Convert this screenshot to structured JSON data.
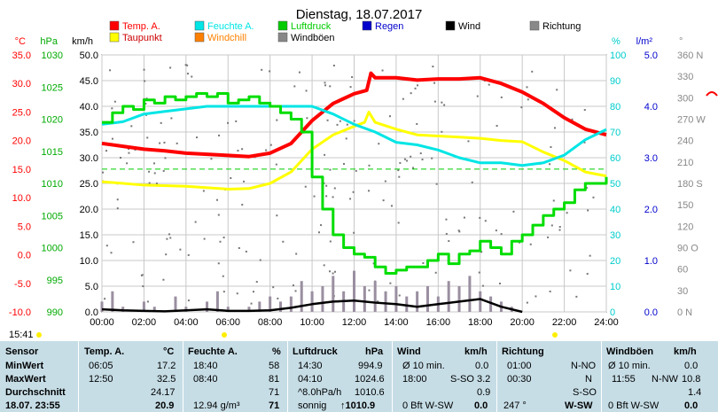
{
  "chart_data": {
    "type": "line",
    "title": "Dienstag, 18.07.2017",
    "x_ticks": [
      "00:00",
      "02:00",
      "04:00",
      "06:00",
      "08:00",
      "10:00",
      "12:00",
      "14:00",
      "16:00",
      "18:00",
      "20:00",
      "22:00",
      "24:00"
    ],
    "grid": true,
    "axes": [
      {
        "unit": "°C",
        "color": "#ff0000",
        "ticks": [
          "35.0",
          "30.0",
          "25.0",
          "20.0",
          "15.0",
          "10.0",
          "5.0",
          "0.0",
          "-5.0",
          "-10.0"
        ],
        "range": [
          -10,
          35
        ]
      },
      {
        "unit": "hPa",
        "color": "#00aa00",
        "ticks": [
          "1030",
          "1025",
          "1020",
          "1015",
          "1010",
          "1005",
          "1000",
          "995",
          "990"
        ],
        "range": [
          990,
          1030
        ]
      },
      {
        "unit": "km/h",
        "color": "#000000",
        "ticks": [
          "50.0",
          "45.0",
          "40.0",
          "35.0",
          "30.0",
          "25.0",
          "20.0",
          "15.0",
          "10.0",
          "5.0",
          "0.0"
        ],
        "range": [
          0,
          50
        ]
      },
      {
        "unit": "%",
        "color": "#00cccc",
        "ticks": [
          "100",
          "90",
          "80",
          "70",
          "60",
          "50",
          "40",
          "30",
          "20",
          "10",
          "0"
        ],
        "range": [
          0,
          100
        ]
      },
      {
        "unit": "l/m²",
        "color": "#0000cc",
        "ticks": [
          "5.0",
          "4.0",
          "3.0",
          "2.0",
          "1.0",
          "0.0"
        ],
        "range": [
          0,
          5
        ]
      },
      {
        "unit": "°",
        "color": "#888888",
        "ticks": [
          "360 N",
          "330",
          "300",
          "270 W",
          "240",
          "210",
          "180 S",
          "150",
          "120",
          "90 O",
          "60",
          "30",
          "0 N"
        ],
        "range": [
          0,
          360
        ]
      }
    ],
    "legend": [
      {
        "label": "Temp. A.",
        "color": "#ff0000"
      },
      {
        "label": "Feuchte A.",
        "color": "#00e5e5"
      },
      {
        "label": "Luftdruck",
        "color": "#00cc00"
      },
      {
        "label": "Regen",
        "color": "#0000cc"
      },
      {
        "label": "Wind",
        "color": "#000000"
      },
      {
        "label": "Richtung",
        "color": "#888888"
      },
      {
        "label": "Taupunkt",
        "color": "#ffff00"
      },
      {
        "label": "Windchill",
        "color": "#ff8000"
      },
      {
        "label": "Windböen",
        "color": "#888888"
      }
    ],
    "series": [
      {
        "name": "Temp. A.",
        "axis": "°C",
        "x": [
          0,
          1,
          2,
          3,
          4,
          5,
          6,
          7,
          8,
          9,
          10,
          11,
          12,
          12.6,
          12.8,
          13,
          14,
          15,
          16,
          17,
          18,
          19,
          20,
          21,
          22,
          23,
          24
        ],
        "values": [
          19.5,
          19.0,
          18.5,
          18.2,
          17.8,
          17.6,
          17.4,
          17.2,
          17.8,
          19.5,
          23.5,
          26.5,
          28.2,
          28.8,
          31.8,
          31.0,
          31.0,
          30.6,
          30.8,
          30.8,
          31.0,
          30.0,
          28.5,
          26.5,
          24.0,
          22.0,
          21.0
        ]
      },
      {
        "name": "Taupunkt",
        "axis": "°C",
        "x": [
          0,
          2,
          4,
          6,
          7,
          8,
          9,
          10,
          11,
          12,
          12.5,
          12.7,
          13,
          14,
          15,
          16,
          17,
          18,
          19,
          20,
          21,
          22,
          23,
          24
        ],
        "values": [
          12.8,
          12.2,
          12.0,
          11.5,
          11.6,
          12.5,
          14.5,
          18.5,
          21.0,
          22.5,
          23.2,
          25.0,
          23.2,
          22.0,
          21.0,
          20.8,
          20.6,
          20.4,
          20.0,
          19.8,
          18.0,
          16.5,
          14.5,
          13.8
        ]
      },
      {
        "name": "Feuchte A.",
        "axis": "%",
        "x": [
          0,
          1,
          2,
          3,
          4,
          5,
          6,
          7,
          8,
          9,
          10,
          11,
          12,
          13,
          14,
          15,
          16,
          17,
          18,
          19,
          20,
          21,
          22,
          23,
          24
        ],
        "values": [
          73,
          74,
          77,
          78,
          79,
          80,
          80,
          80,
          80,
          80,
          80,
          77,
          73,
          70,
          66,
          65,
          63,
          60,
          58,
          58,
          57,
          58,
          61,
          67,
          71
        ]
      },
      {
        "name": "Luftdruck",
        "axis": "hPa",
        "x": [
          0,
          0.5,
          1,
          1.5,
          2,
          2.5,
          3,
          3.5,
          4,
          4.5,
          5,
          5.5,
          6,
          6.5,
          7,
          7.5,
          8,
          8.5,
          9,
          9.5,
          10,
          10.5,
          11,
          11.5,
          12,
          12.5,
          13,
          13.5,
          14,
          14.5,
          15,
          15.5,
          16,
          16.5,
          17,
          17.5,
          18,
          18.5,
          19,
          19.5,
          20,
          20.5,
          21,
          21.5,
          22,
          22.5,
          23,
          23.5,
          24
        ],
        "values": [
          1019.5,
          1021.0,
          1022.0,
          1021.5,
          1023.0,
          1022.5,
          1023.5,
          1023.0,
          1023.5,
          1024.0,
          1023.5,
          1024.0,
          1022.5,
          1023.0,
          1023.5,
          1022.5,
          1022.0,
          1021.0,
          1020.0,
          1018.0,
          1011.0,
          1006.0,
          1002.0,
          1000.0,
          999.0,
          998.5,
          997.0,
          996.0,
          996.5,
          997.0,
          997.0,
          998.0,
          999.0,
          997.5,
          999.0,
          999.5,
          1001.0,
          1000.0,
          999.0,
          1001.0,
          1002.0,
          1003.5,
          1005.0,
          1006.0,
          1007.0,
          1009.0,
          1010.0,
          1010.0,
          1011.0
        ]
      },
      {
        "name": "Wind",
        "axis": "km/h",
        "x": [
          0,
          1,
          2,
          3,
          4,
          5,
          6,
          7,
          8,
          9,
          10,
          11,
          12,
          13,
          14,
          15,
          16,
          17,
          18,
          19,
          20
        ],
        "values": [
          0.5,
          0.3,
          0.2,
          0.1,
          0.3,
          0.5,
          0.2,
          0.2,
          0.3,
          0.8,
          1.5,
          2.0,
          2.2,
          1.8,
          1.5,
          1.0,
          1.5,
          2.0,
          2.5,
          1.0,
          0.0
        ]
      },
      {
        "name": "Windböen",
        "axis": "km/h",
        "x": [
          0,
          0.5,
          1,
          1.5,
          2,
          2.5,
          3,
          3.5,
          4,
          4.5,
          5,
          5.5,
          6,
          6.5,
          7,
          7.5,
          8,
          8.5,
          9,
          9.5,
          10,
          10.5,
          11,
          11.5,
          12,
          12.5,
          13,
          13.5,
          14,
          14.5,
          15,
          15.5,
          16,
          16.5,
          17,
          17.5,
          18,
          18.5,
          19,
          19.5,
          20
        ],
        "values": [
          2,
          4,
          1,
          0,
          2,
          1,
          0,
          3,
          1,
          0,
          2,
          4,
          1,
          0,
          1,
          2,
          3,
          2,
          3,
          6,
          4,
          5,
          7,
          4,
          8,
          5,
          6,
          4,
          5,
          3,
          4,
          5,
          3,
          6,
          5,
          7,
          4,
          3,
          2,
          1,
          0
        ]
      }
    ],
    "thresholds": [
      {
        "axis": "°C",
        "value": 15,
        "color": "#00cc00",
        "style": "dashed"
      }
    ]
  },
  "footer": {
    "time": "15:41"
  },
  "stats": {
    "row_labels": [
      "Sensor",
      "MinWert",
      "MaxWert",
      "Durchschnitt",
      "18.07. 23:55"
    ],
    "temp": {
      "header": "Temp. A.",
      "unit": "°C",
      "min_time": "06:05",
      "min": "17.2",
      "max_time": "12:50",
      "max": "32.5",
      "avg": "24.17",
      "current": "20.9"
    },
    "humidity": {
      "header": "Feuchte A.",
      "unit": "%",
      "min_time": "18:40",
      "min": "58",
      "max_time": "08:40",
      "max": "81",
      "avg": "71",
      "current_abs": "12.94 g/m³",
      "current": "71"
    },
    "pressure": {
      "header": "Luftdruck",
      "unit": "hPa",
      "min_time": "14:30",
      "min": "994.9",
      "max_time": "04:10",
      "max": "1024.6",
      "avg_note": "^8.0hPa/h",
      "avg": "1010.6",
      "current_note": "sonnig",
      "current": "↑1010.9"
    },
    "wind": {
      "header": "Wind",
      "unit": "km/h",
      "min_time": "Ø 10 min.",
      "min": "0.0",
      "max_time": "18:00",
      "max_dir": "S-SO",
      "max": "3.2",
      "avg": "0.9",
      "current_note": "0 Bft W-SW",
      "current": "0.0"
    },
    "direction": {
      "header": "Richtung",
      "min_time": "01:00",
      "min": "N-NO",
      "max_time": "00:30",
      "max": "N",
      "avg": "S-SO",
      "current_deg": "247 °",
      "current": "W-SW"
    },
    "gust": {
      "header": "Windböen",
      "unit": "km/h",
      "min_time": "Ø 10 min.",
      "min": "0.0",
      "max_time": "11:55",
      "max_dir": "N-NW",
      "max": "10.8",
      "avg": "1.4",
      "current_note": "0 Bft W-SW",
      "current": "0.0"
    }
  }
}
